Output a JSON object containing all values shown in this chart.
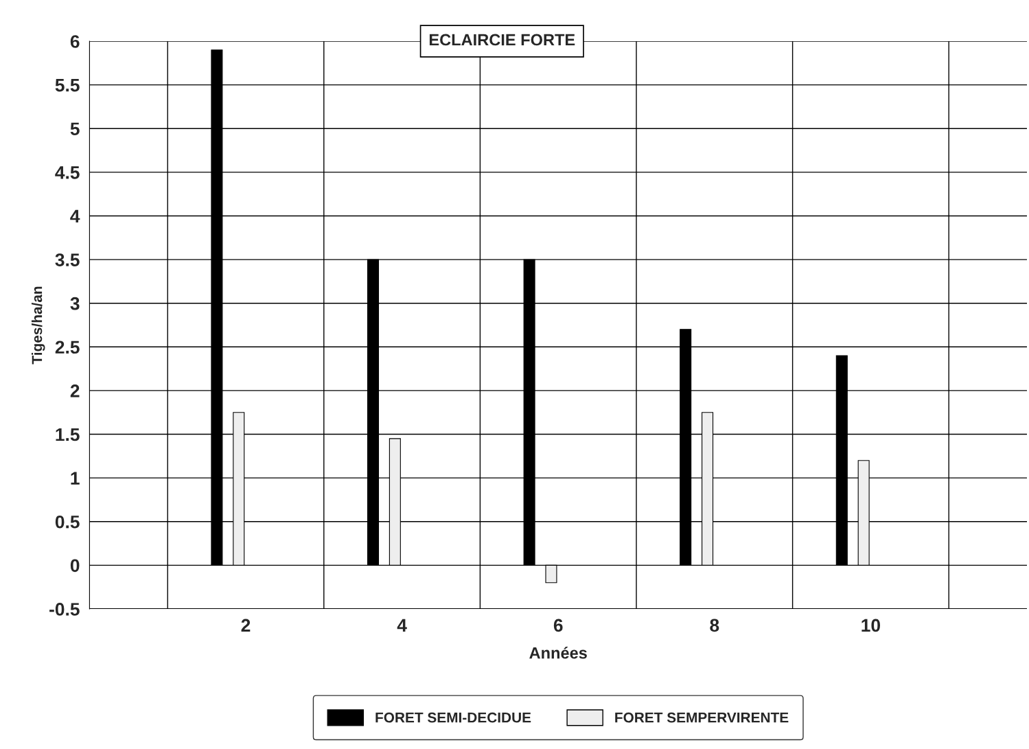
{
  "chart_data": {
    "type": "bar",
    "title": "ECLAIRCIE FORTE",
    "xlabel": "Années",
    "ylabel": "Tiges/ha/an",
    "categories": [
      "2",
      "4",
      "6",
      "8",
      "10"
    ],
    "series": [
      {
        "name": "FORET SEMI-DECIDUE",
        "color": "#000000",
        "values": [
          5.9,
          3.5,
          3.5,
          2.7,
          2.4
        ]
      },
      {
        "name": "FORET SEMPERVIRENTE",
        "color": "#eeeeee",
        "values": [
          1.75,
          1.45,
          -0.2,
          1.75,
          1.2
        ]
      }
    ],
    "ylim": [
      -0.5,
      6
    ],
    "yticks": [
      -0.5,
      0,
      0.5,
      1,
      1.5,
      2,
      2.5,
      3,
      3.5,
      4,
      4.5,
      5,
      5.5,
      6
    ],
    "grid": true,
    "legend": "bottom"
  }
}
